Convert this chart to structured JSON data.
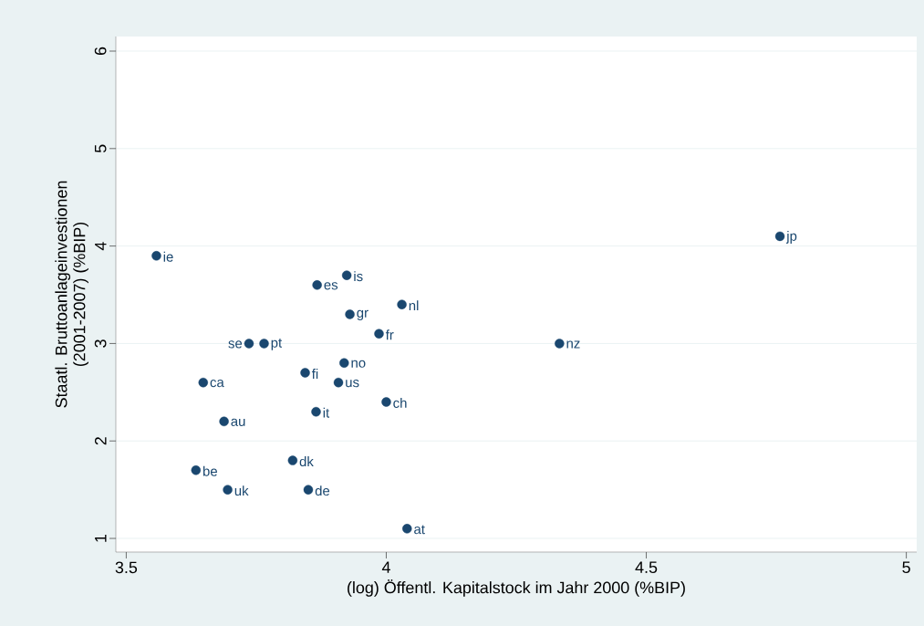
{
  "chart_data": {
    "type": "scatter",
    "xlabel": "(log) Öffentl. Kapitalstock im Jahr 2000 (%BIP)",
    "ylabel": "Staatl. Bruttoanlageinvestionen\n(2001-2007) (%BIP)",
    "xlim": [
      3.48,
      5.02
    ],
    "ylim": [
      0.86,
      6.15
    ],
    "xticks": [
      3.5,
      4,
      4.5,
      5
    ],
    "yticks": [
      1,
      2,
      3,
      4,
      5,
      6
    ],
    "grid": "y",
    "marker": "circle",
    "series": [
      {
        "color": "#1a476f",
        "x": [
          3.558,
          3.867,
          3.924,
          4.03,
          3.93,
          3.986,
          3.736,
          3.765,
          4.333,
          3.919,
          3.844,
          3.908,
          3.648,
          4.0,
          3.865,
          3.688,
          3.82,
          3.634,
          3.695,
          3.85,
          4.04,
          4.757
        ],
        "values": [
          3.9,
          3.6,
          3.7,
          3.4,
          3.3,
          3.1,
          3.0,
          3.0,
          3.0,
          2.8,
          2.7,
          2.6,
          2.6,
          2.4,
          2.3,
          2.2,
          1.8,
          1.7,
          1.5,
          1.5,
          1.1,
          4.1
        ],
        "value_labels": [
          "ie",
          "es",
          "is",
          "nl",
          "gr",
          "fr",
          "se",
          "pt",
          "nz",
          "no",
          "fi",
          "us",
          "ca",
          "ch",
          "it",
          "au",
          "dk",
          "be",
          "uk",
          "de",
          "at",
          "jp"
        ]
      }
    ]
  }
}
